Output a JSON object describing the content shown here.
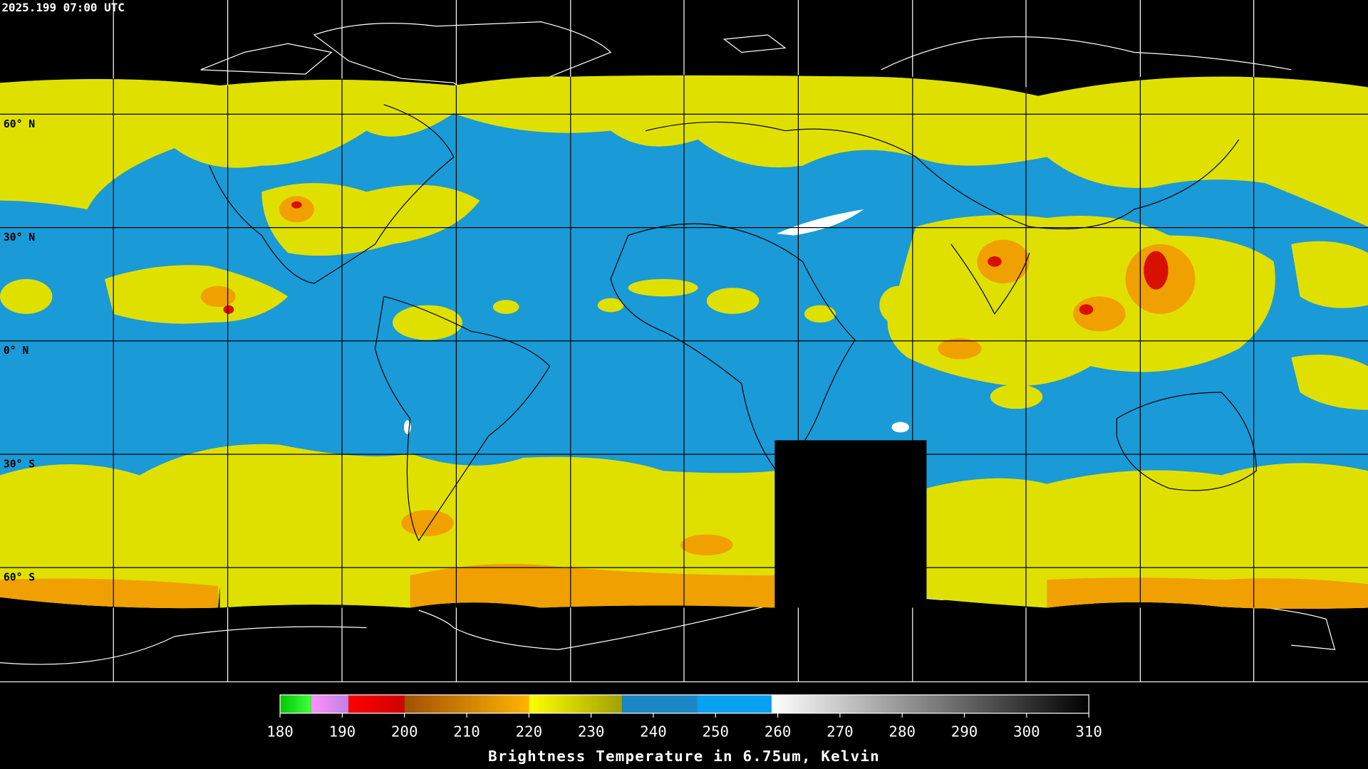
{
  "timestamp": "2025.199 07:00 UTC",
  "lat_lines": [
    {
      "value": 60,
      "label": "60° N"
    },
    {
      "value": 30,
      "label": "30° N"
    },
    {
      "value": 0,
      "label": "0° N"
    },
    {
      "value": -30,
      "label": "30° S"
    },
    {
      "value": -60,
      "label": "60° S"
    }
  ],
  "colorbar": {
    "label": "Brightness Temperature in 6.75um, Kelvin",
    "range": [
      180,
      310
    ],
    "ticks": [
      180,
      190,
      200,
      210,
      220,
      230,
      240,
      250,
      260,
      270,
      280,
      290,
      300,
      310
    ],
    "segments": [
      {
        "from": 180,
        "to": 185,
        "colors": [
          "#00c800",
          "#40ff40"
        ]
      },
      {
        "from": 185,
        "to": 191,
        "colors": [
          "#ff90ff",
          "#c080e0"
        ]
      },
      {
        "from": 191,
        "to": 200,
        "colors": [
          "#ff0000",
          "#d00000"
        ]
      },
      {
        "from": 200,
        "to": 220,
        "colors": [
          "#a05000",
          "#ffb400"
        ]
      },
      {
        "from": 220,
        "to": 235,
        "colors": [
          "#ffff00",
          "#a0a000"
        ]
      },
      {
        "from": 235,
        "to": 247,
        "colors": [
          "#1a86c6",
          "#1a86c6"
        ]
      },
      {
        "from": 247,
        "to": 259,
        "colors": [
          "#0aa0f0",
          "#0aa0f0"
        ]
      },
      {
        "from": 259,
        "to": 310,
        "colors": [
          "#ffffff",
          "#000000"
        ]
      }
    ]
  }
}
